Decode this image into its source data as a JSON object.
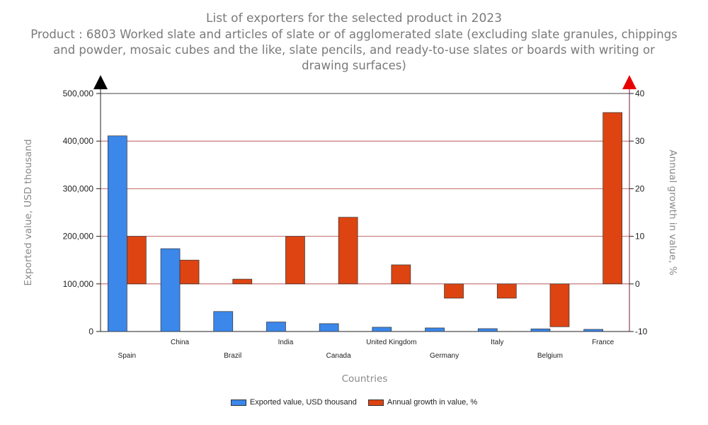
{
  "chart_data": {
    "type": "bar",
    "title": "List of exporters for the selected product in 2023",
    "subtitle": "Product : 6803 Worked slate and articles of slate or of agglomerated slate (excluding slate granules, chippings and powder, mosaic cubes and the like, slate pencils, and ready-to-use slates or boards with writing or drawing surfaces)",
    "xlabel": "Countries",
    "ylabel_left": "Exported value, USD thousand",
    "ylabel_right": "Annual growth in value, %",
    "categories": [
      "Spain",
      "China",
      "Brazil",
      "India",
      "Canada",
      "United Kingdom",
      "Germany",
      "Italy",
      "Belgium",
      "France"
    ],
    "series": [
      {
        "name": "Exported value, USD thousand",
        "axis": "left",
        "color": "#3b87ea",
        "values": [
          411000,
          174000,
          42000,
          20000,
          16500,
          9000,
          7500,
          6000,
          5500,
          4500
        ]
      },
      {
        "name": "Annual growth in value, %",
        "axis": "right",
        "color": "#dd4412",
        "values": [
          10,
          5,
          1,
          10,
          14,
          4,
          -3,
          -3,
          -9,
          36
        ]
      }
    ],
    "ylim_left": [
      0,
      500000
    ],
    "ylim_right": [
      -10,
      40
    ],
    "yticks_left": [
      "0",
      "100,000",
      "200,000",
      "300,000",
      "400,000",
      "500,000"
    ],
    "yticks_right": [
      "-10",
      "0",
      "10",
      "20",
      "30",
      "40"
    ],
    "grid": true,
    "legend_position": "bottom",
    "axis_marker_colors": {
      "left": "#000000",
      "right": "#e80000"
    }
  }
}
